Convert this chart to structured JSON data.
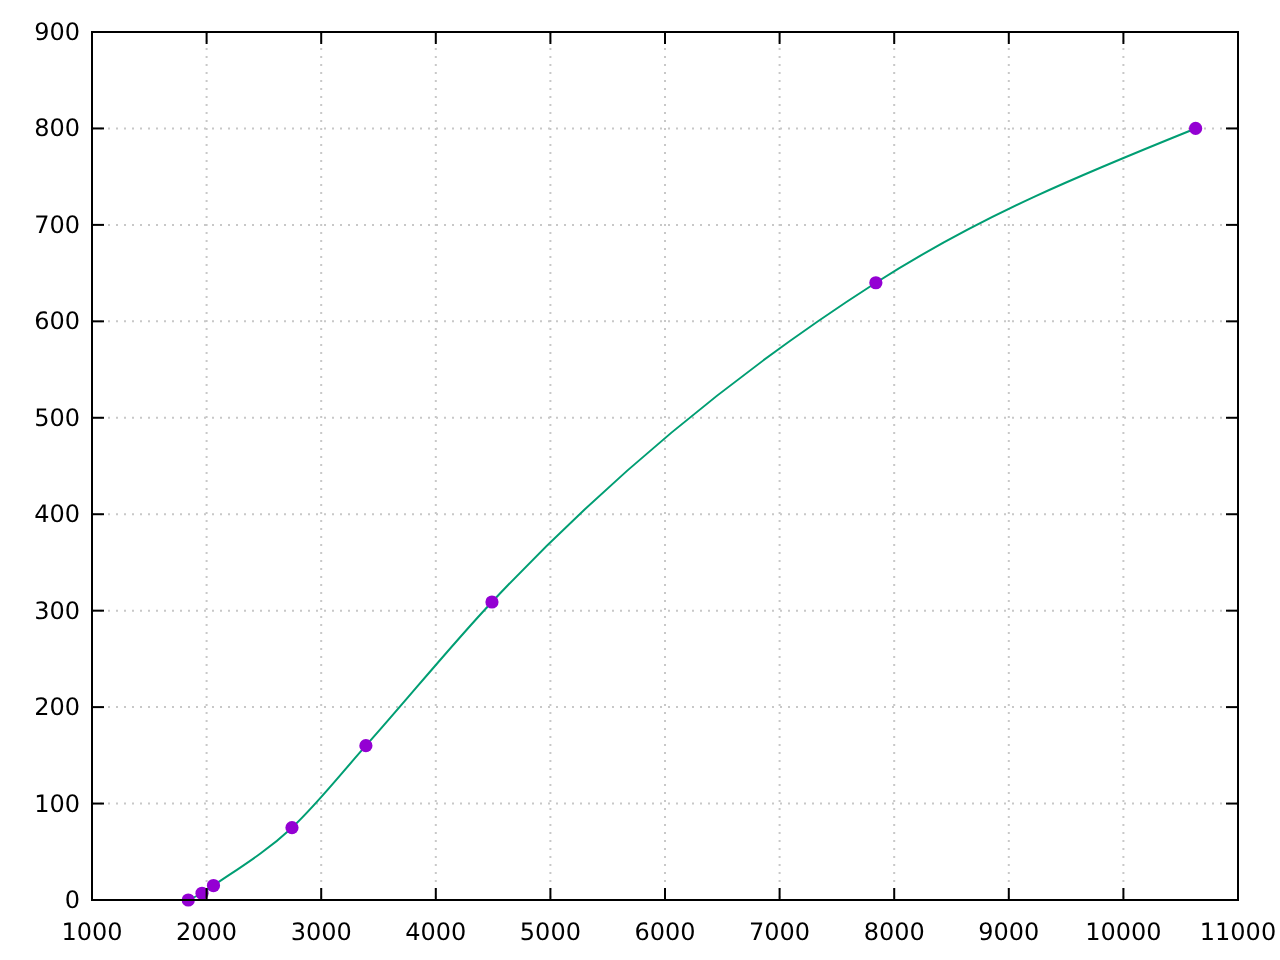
{
  "chart_data": {
    "type": "scatter",
    "series": [
      {
        "type": "line",
        "color": "#009e73",
        "marker": "none",
        "x": [
          1840,
          1960,
          2060,
          2745,
          3390,
          4490,
          7840,
          10630
        ],
        "values": [
          0,
          7,
          15,
          75,
          160,
          309,
          640,
          800
        ]
      },
      {
        "color": "#9400d3",
        "marker": "circle",
        "x": [
          1840,
          1960,
          2060,
          2745,
          3390,
          4490,
          7840,
          10630
        ],
        "values": [
          0,
          7,
          15,
          75,
          160,
          309,
          640,
          800
        ]
      }
    ],
    "xlim": [
      1000,
      11000
    ],
    "xticks": [
      1000,
      2000,
      3000,
      4000,
      5000,
      6000,
      7000,
      8000,
      9000,
      10000,
      11000
    ],
    "ylim": [
      0,
      900
    ],
    "yticks": [
      0,
      100,
      200,
      300,
      400,
      500,
      600,
      700,
      800,
      900
    ],
    "grid": true
  }
}
